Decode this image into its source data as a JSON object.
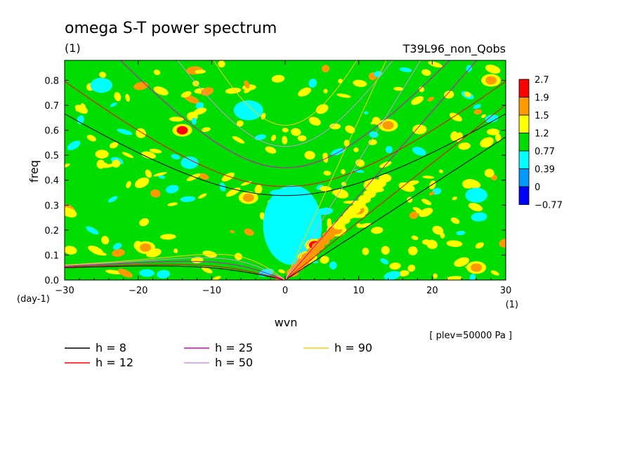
{
  "chart_data": {
    "type": "heatmap",
    "title": "omega S-T power spectrum",
    "title_unit": "(1)",
    "experiment": "T39L96_non_Qobs",
    "xlabel": "wvn",
    "ylabel": "freq",
    "x_unit": "(1)",
    "y_unit": "(day-1)",
    "level_note": "[ plev=50000 Pa ]",
    "xlim": [
      -30,
      30
    ],
    "ylim": [
      0,
      0.88
    ],
    "x_ticks": [
      "-30",
      "-20",
      "-10",
      "0",
      "10",
      "20",
      "30"
    ],
    "y_ticks": [
      "0.0",
      "0.1",
      "0.2",
      "0.3",
      "0.4",
      "0.5",
      "0.6",
      "0.7",
      "0.8"
    ],
    "colorbar": {
      "levels": [
        "2.7",
        "1.9",
        "1.5",
        "1.2",
        "0.77",
        "0.39",
        "0",
        "-0.77"
      ],
      "colors": [
        "#ff0000",
        "#ff9900",
        "#ffff00",
        "#00dd00",
        "#00ffff",
        "#0099ff",
        "#0000ff"
      ]
    },
    "background_color": "#00dd00",
    "hotspots": [
      {
        "x": 4,
        "y": 0.14,
        "level": "2.7"
      },
      {
        "x": 3,
        "y": 0.09,
        "level": "2.7"
      },
      {
        "x": 7,
        "y": 0.2,
        "level": "1.9"
      },
      {
        "x": 10,
        "y": 0.28,
        "level": "1.9"
      },
      {
        "x": 12,
        "y": 0.38,
        "level": "1.5"
      },
      {
        "x": -14,
        "y": 0.6,
        "level": "2.7"
      },
      {
        "x": -5,
        "y": 0.33,
        "level": "1.9"
      },
      {
        "x": 14,
        "y": 0.62,
        "level": "1.9"
      },
      {
        "x": 28,
        "y": 0.8,
        "level": "1.9"
      },
      {
        "x": -19,
        "y": 0.13,
        "level": "1.9"
      },
      {
        "x": 26,
        "y": 0.05,
        "level": "1.9"
      }
    ],
    "cold_regions": [
      {
        "x": 1,
        "y": 0.22,
        "rx": 4,
        "ry": 0.16
      },
      {
        "x": -5,
        "y": 0.68,
        "rx": 2,
        "ry": 0.04
      },
      {
        "x": -25,
        "y": 0.78,
        "rx": 1.5,
        "ry": 0.03
      },
      {
        "x": 26,
        "y": 0.34,
        "rx": 1.5,
        "ry": 0.03
      },
      {
        "x": -13,
        "y": 0.47,
        "rx": 1.2,
        "ry": 0.025
      }
    ],
    "dispersion_curves": [
      {
        "name": "h =  8",
        "h": 8,
        "color": "#000000"
      },
      {
        "name": "h = 12",
        "h": 12,
        "color": "#ff0000"
      },
      {
        "name": "h = 25",
        "h": 25,
        "color": "#dd00cc"
      },
      {
        "name": "h = 50",
        "h": 50,
        "color": "#cc99dd"
      },
      {
        "name": "h = 90",
        "h": 90,
        "color": "#ffcc00"
      }
    ]
  }
}
